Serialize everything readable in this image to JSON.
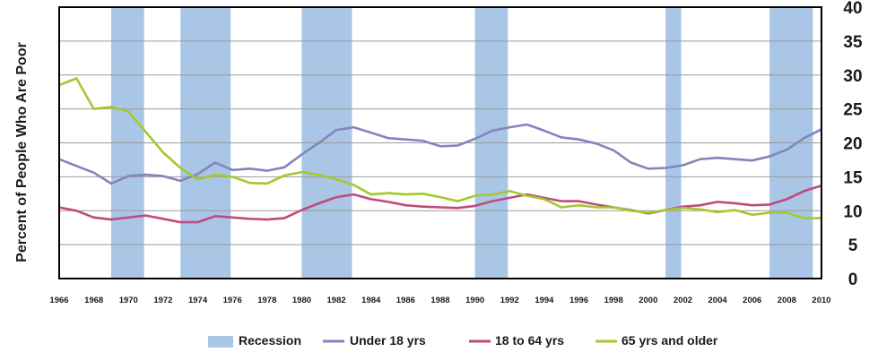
{
  "chart_data": {
    "type": "line",
    "ylabel": "Percent of People Who Are Poor",
    "xlabel": "",
    "xlim": [
      1966,
      2010
    ],
    "ylim": [
      0,
      40
    ],
    "y_ticks": [
      0,
      5,
      10,
      15,
      20,
      25,
      30,
      35,
      40
    ],
    "x_ticks": [
      1966,
      1968,
      1970,
      1972,
      1974,
      1976,
      1978,
      1980,
      1982,
      1984,
      1986,
      1988,
      1990,
      1992,
      1994,
      1996,
      1998,
      2000,
      2002,
      2004,
      2006,
      2008,
      2010
    ],
    "y_axis_side": "right",
    "grid": true,
    "legend_position": "bottom",
    "recession_label": "Recession",
    "recession_color": "#a9c6e6",
    "recessions": [
      [
        1969,
        1970.9
      ],
      [
        1973,
        1975.9
      ],
      [
        1980,
        1982.9
      ],
      [
        1990,
        1991.9
      ],
      [
        2001,
        2001.9
      ],
      [
        2007,
        2009.5
      ]
    ],
    "years": [
      1966,
      1967,
      1968,
      1969,
      1970,
      1971,
      1972,
      1973,
      1974,
      1975,
      1976,
      1977,
      1978,
      1979,
      1980,
      1981,
      1982,
      1983,
      1984,
      1985,
      1986,
      1987,
      1988,
      1989,
      1990,
      1991,
      1992,
      1993,
      1994,
      1995,
      1996,
      1997,
      1998,
      1999,
      2000,
      2001,
      2002,
      2003,
      2004,
      2005,
      2006,
      2007,
      2008,
      2009,
      2010
    ],
    "series": [
      {
        "name": "Under 18 yrs",
        "color": "#8285bd",
        "values": [
          17.6,
          16.6,
          15.6,
          14.0,
          15.1,
          15.3,
          15.1,
          14.4,
          15.4,
          17.1,
          16.0,
          16.2,
          15.9,
          16.4,
          18.3,
          20.0,
          21.9,
          22.3,
          21.5,
          20.7,
          20.5,
          20.3,
          19.5,
          19.6,
          20.6,
          21.8,
          22.3,
          22.7,
          21.8,
          20.8,
          20.5,
          19.9,
          18.9,
          17.1,
          16.2,
          16.3,
          16.7,
          17.6,
          17.8,
          17.6,
          17.4,
          18.0,
          19.0,
          20.7,
          22.0
        ]
      },
      {
        "name": "18 to 64 yrs",
        "color": "#c2497d",
        "values": [
          10.5,
          10.0,
          9.0,
          8.7,
          9.0,
          9.3,
          8.8,
          8.3,
          8.3,
          9.2,
          9.0,
          8.8,
          8.7,
          8.9,
          10.1,
          11.1,
          12.0,
          12.4,
          11.7,
          11.3,
          10.8,
          10.6,
          10.5,
          10.4,
          10.7,
          11.4,
          11.9,
          12.4,
          11.9,
          11.4,
          11.4,
          10.9,
          10.5,
          10.1,
          9.6,
          10.1,
          10.6,
          10.8,
          11.3,
          11.1,
          10.8,
          10.9,
          11.7,
          12.9,
          13.7
        ]
      },
      {
        "name": "65 yrs and older",
        "color": "#a3c930",
        "values": [
          28.5,
          29.5,
          25.0,
          25.3,
          24.6,
          21.6,
          18.6,
          16.3,
          14.6,
          15.3,
          15.0,
          14.1,
          14.0,
          15.2,
          15.7,
          15.3,
          14.6,
          13.8,
          12.4,
          12.6,
          12.4,
          12.5,
          12.0,
          11.4,
          12.2,
          12.4,
          12.9,
          12.2,
          11.7,
          10.5,
          10.8,
          10.5,
          10.5,
          10.0,
          9.7,
          10.1,
          10.4,
          10.2,
          9.8,
          10.1,
          9.4,
          9.7,
          9.7,
          8.9,
          8.9
        ]
      }
    ]
  }
}
